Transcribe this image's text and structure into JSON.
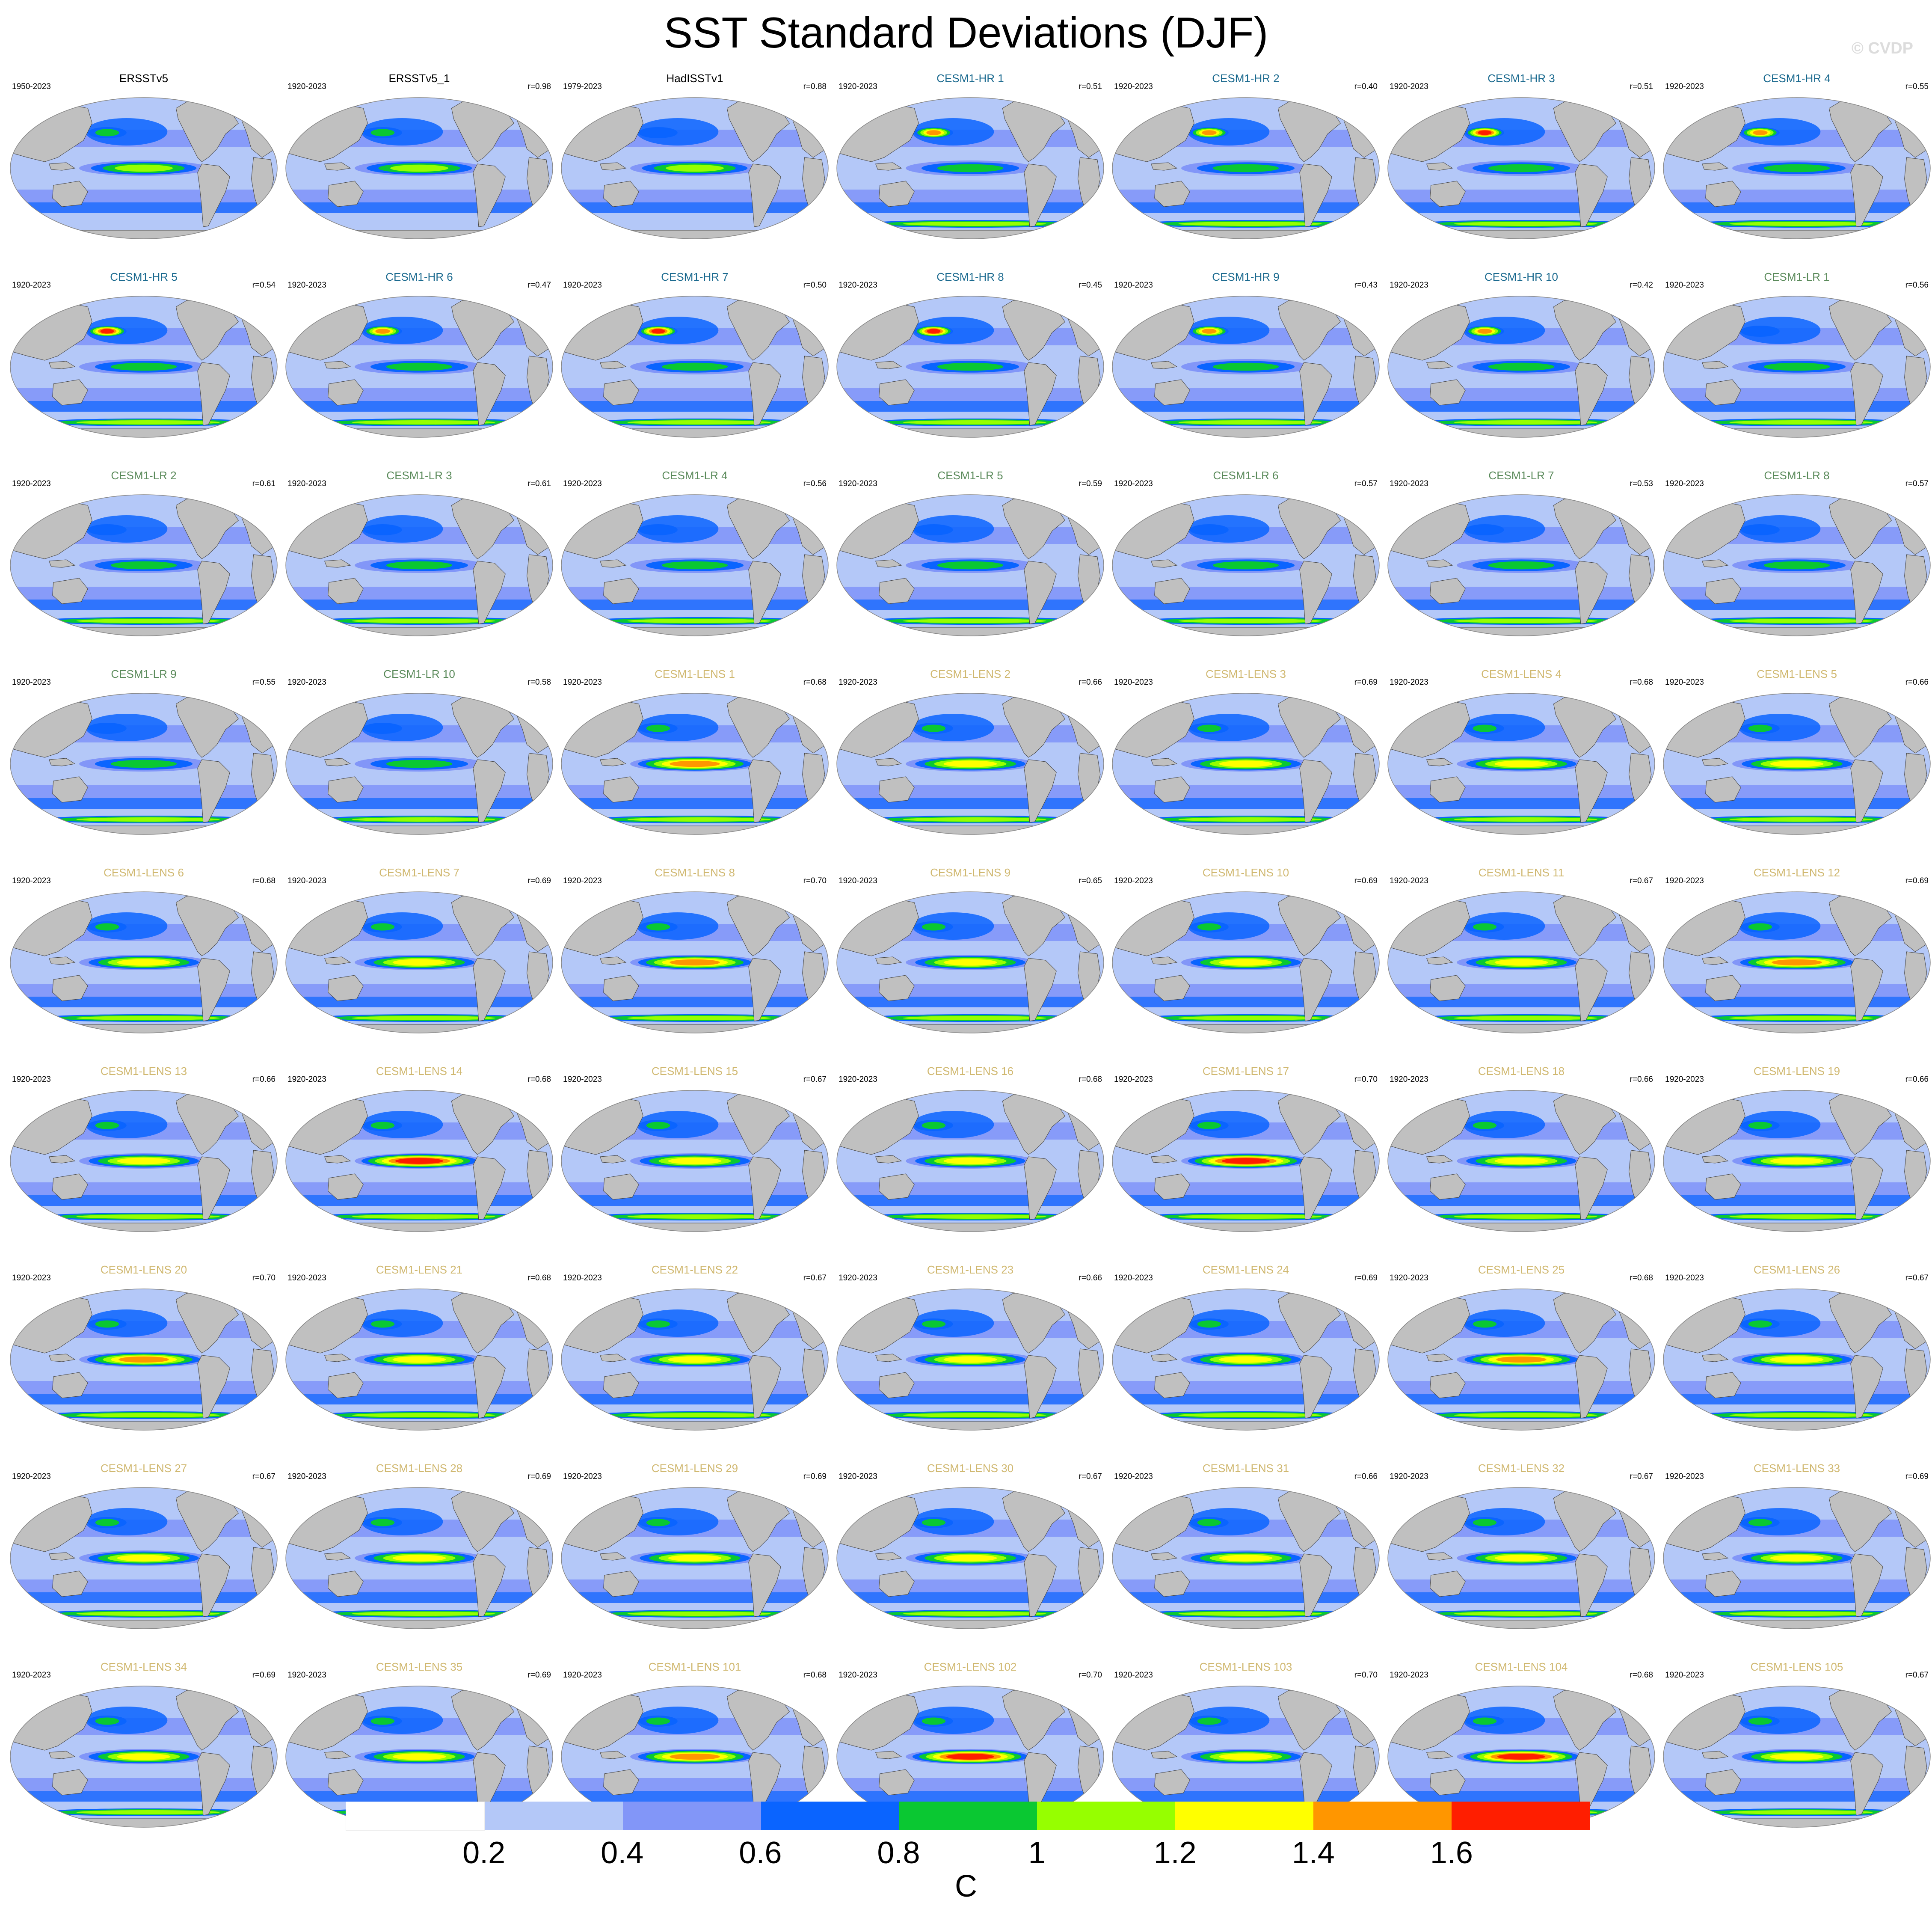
{
  "title": "SST Standard Deviations (DJF)",
  "watermark": "© CVDP",
  "panels": [
    {
      "name": "ERSSTv5",
      "years": "1950-2023",
      "r": "",
      "group": "obs",
      "enso": 1.0,
      "kuro": 0.8,
      "so": 0.5
    },
    {
      "name": "ERSSTv5_1",
      "years": "1920-2023",
      "r": "r=0.98",
      "group": "obs",
      "enso": 1.0,
      "kuro": 0.8,
      "so": 0.5
    },
    {
      "name": "HadISSTv1",
      "years": "1979-2023",
      "r": "r=0.88",
      "group": "obs",
      "enso": 1.0,
      "kuro": 0.6,
      "so": 0.3
    },
    {
      "name": "CESM1-HR 1",
      "years": "1920-2023",
      "r": "r=0.51",
      "group": "hr",
      "enso": 0.95,
      "kuro": 1.5,
      "so": 1.1
    },
    {
      "name": "CESM1-HR 2",
      "years": "1920-2023",
      "r": "r=0.40",
      "group": "hr",
      "enso": 0.9,
      "kuro": 1.4,
      "so": 1.0
    },
    {
      "name": "CESM1-HR 3",
      "years": "1920-2023",
      "r": "r=0.51",
      "group": "hr",
      "enso": 0.95,
      "kuro": 1.6,
      "so": 1.0
    },
    {
      "name": "CESM1-HR 4",
      "years": "1920-2023",
      "r": "r=0.55",
      "group": "hr",
      "enso": 0.95,
      "kuro": 1.5,
      "so": 1.0
    },
    {
      "name": "CESM1-HR 5",
      "years": "1920-2023",
      "r": "r=0.54",
      "group": "hr",
      "enso": 0.95,
      "kuro": 1.6,
      "so": 1.1
    },
    {
      "name": "CESM1-HR 6",
      "years": "1920-2023",
      "r": "r=0.47",
      "group": "hr",
      "enso": 0.9,
      "kuro": 1.5,
      "so": 1.0
    },
    {
      "name": "CESM1-HR 7",
      "years": "1920-2023",
      "r": "r=0.50",
      "group": "hr",
      "enso": 0.95,
      "kuro": 1.6,
      "so": 1.1
    },
    {
      "name": "CESM1-HR 8",
      "years": "1920-2023",
      "r": "r=0.45",
      "group": "hr",
      "enso": 0.9,
      "kuro": 1.6,
      "so": 1.1
    },
    {
      "name": "CESM1-HR 9",
      "years": "1920-2023",
      "r": "r=0.43",
      "group": "hr",
      "enso": 0.9,
      "kuro": 1.5,
      "so": 1.1
    },
    {
      "name": "CESM1-HR 10",
      "years": "1920-2023",
      "r": "r=0.42",
      "group": "hr",
      "enso": 0.9,
      "kuro": 1.5,
      "so": 1.0
    },
    {
      "name": "CESM1-LR 1",
      "years": "1920-2023",
      "r": "r=0.56",
      "group": "lr",
      "enso": 0.85,
      "kuro": 0.7,
      "so": 1.1
    },
    {
      "name": "CESM1-LR 2",
      "years": "1920-2023",
      "r": "r=0.61",
      "group": "lr",
      "enso": 0.9,
      "kuro": 0.7,
      "so": 1.1
    },
    {
      "name": "CESM1-LR 3",
      "years": "1920-2023",
      "r": "r=0.61",
      "group": "lr",
      "enso": 0.9,
      "kuro": 0.7,
      "so": 1.1
    },
    {
      "name": "CESM1-LR 4",
      "years": "1920-2023",
      "r": "r=0.56",
      "group": "lr",
      "enso": 0.85,
      "kuro": 0.7,
      "so": 1.1
    },
    {
      "name": "CESM1-LR 5",
      "years": "1920-2023",
      "r": "r=0.59",
      "group": "lr",
      "enso": 0.9,
      "kuro": 0.7,
      "so": 1.0
    },
    {
      "name": "CESM1-LR 6",
      "years": "1920-2023",
      "r": "r=0.57",
      "group": "lr",
      "enso": 0.85,
      "kuro": 0.7,
      "so": 1.1
    },
    {
      "name": "CESM1-LR 7",
      "years": "1920-2023",
      "r": "r=0.53",
      "group": "lr",
      "enso": 0.85,
      "kuro": 0.7,
      "so": 1.1
    },
    {
      "name": "CESM1-LR 8",
      "years": "1920-2023",
      "r": "r=0.57",
      "group": "lr",
      "enso": 0.85,
      "kuro": 0.7,
      "so": 1.1
    },
    {
      "name": "CESM1-LR 9",
      "years": "1920-2023",
      "r": "r=0.55",
      "group": "lr",
      "enso": 0.9,
      "kuro": 0.7,
      "so": 1.1
    },
    {
      "name": "CESM1-LR 10",
      "years": "1920-2023",
      "r": "r=0.58",
      "group": "lr",
      "enso": 0.9,
      "kuro": 0.7,
      "so": 1.1
    },
    {
      "name": "CESM1-LENS 1",
      "years": "1920-2023",
      "r": "r=0.68",
      "group": "lens",
      "enso": 1.45,
      "kuro": 0.9,
      "so": 1.1
    },
    {
      "name": "CESM1-LENS 2",
      "years": "1920-2023",
      "r": "r=0.66",
      "group": "lens",
      "enso": 1.25,
      "kuro": 0.9,
      "so": 1.0
    },
    {
      "name": "CESM1-LENS 3",
      "years": "1920-2023",
      "r": "r=0.69",
      "group": "lens",
      "enso": 1.3,
      "kuro": 0.9,
      "so": 1.0
    },
    {
      "name": "CESM1-LENS 4",
      "years": "1920-2023",
      "r": "r=0.68",
      "group": "lens",
      "enso": 1.35,
      "kuro": 0.9,
      "so": 1.1
    },
    {
      "name": "CESM1-LENS 5",
      "years": "1920-2023",
      "r": "r=0.66",
      "group": "lens",
      "enso": 1.25,
      "kuro": 0.9,
      "so": 1.0
    },
    {
      "name": "CESM1-LENS 6",
      "years": "1920-2023",
      "r": "r=0.68",
      "group": "lens",
      "enso": 1.3,
      "kuro": 0.9,
      "so": 1.1
    },
    {
      "name": "CESM1-LENS 7",
      "years": "1920-2023",
      "r": "r=0.69",
      "group": "lens",
      "enso": 1.3,
      "kuro": 0.9,
      "so": 1.1
    },
    {
      "name": "CESM1-LENS 8",
      "years": "1920-2023",
      "r": "r=0.70",
      "group": "lens",
      "enso": 1.45,
      "kuro": 0.9,
      "so": 1.1
    },
    {
      "name": "CESM1-LENS 9",
      "years": "1920-2023",
      "r": "r=0.65",
      "group": "lens",
      "enso": 1.3,
      "kuro": 0.9,
      "so": 1.1
    },
    {
      "name": "CESM1-LENS 10",
      "years": "1920-2023",
      "r": "r=0.69",
      "group": "lens",
      "enso": 1.35,
      "kuro": 0.9,
      "so": 1.1
    },
    {
      "name": "CESM1-LENS 11",
      "years": "1920-2023",
      "r": "r=0.67",
      "group": "lens",
      "enso": 1.35,
      "kuro": 0.9,
      "so": 1.1
    },
    {
      "name": "CESM1-LENS 12",
      "years": "1920-2023",
      "r": "r=0.69",
      "group": "lens",
      "enso": 1.45,
      "kuro": 0.9,
      "so": 1.1
    },
    {
      "name": "CESM1-LENS 13",
      "years": "1920-2023",
      "r": "r=0.66",
      "group": "lens",
      "enso": 1.3,
      "kuro": 0.9,
      "so": 1.1
    },
    {
      "name": "CESM1-LENS 14",
      "years": "1920-2023",
      "r": "r=0.68",
      "group": "lens",
      "enso": 1.65,
      "kuro": 0.9,
      "so": 1.1
    },
    {
      "name": "CESM1-LENS 15",
      "years": "1920-2023",
      "r": "r=0.67",
      "group": "lens",
      "enso": 1.3,
      "kuro": 0.9,
      "so": 1.0
    },
    {
      "name": "CESM1-LENS 16",
      "years": "1920-2023",
      "r": "r=0.68",
      "group": "lens",
      "enso": 1.3,
      "kuro": 0.9,
      "so": 1.1
    },
    {
      "name": "CESM1-LENS 17",
      "years": "1920-2023",
      "r": "r=0.70",
      "group": "lens",
      "enso": 1.6,
      "kuro": 0.9,
      "so": 1.1
    },
    {
      "name": "CESM1-LENS 18",
      "years": "1920-2023",
      "r": "r=0.66",
      "group": "lens",
      "enso": 1.3,
      "kuro": 0.9,
      "so": 1.1
    },
    {
      "name": "CESM1-LENS 19",
      "years": "1920-2023",
      "r": "r=0.66",
      "group": "lens",
      "enso": 1.25,
      "kuro": 0.9,
      "so": 1.1
    },
    {
      "name": "CESM1-LENS 20",
      "years": "1920-2023",
      "r": "r=0.70",
      "group": "lens",
      "enso": 1.45,
      "kuro": 0.9,
      "so": 1.1
    },
    {
      "name": "CESM1-LENS 21",
      "years": "1920-2023",
      "r": "r=0.68",
      "group": "lens",
      "enso": 1.3,
      "kuro": 0.9,
      "so": 1.1
    },
    {
      "name": "CESM1-LENS 22",
      "years": "1920-2023",
      "r": "r=0.67",
      "group": "lens",
      "enso": 1.3,
      "kuro": 0.9,
      "so": 1.0
    },
    {
      "name": "CESM1-LENS 23",
      "years": "1920-2023",
      "r": "r=0.66",
      "group": "lens",
      "enso": 1.3,
      "kuro": 0.9,
      "so": 1.0
    },
    {
      "name": "CESM1-LENS 24",
      "years": "1920-2023",
      "r": "r=0.69",
      "group": "lens",
      "enso": 1.35,
      "kuro": 0.9,
      "so": 1.1
    },
    {
      "name": "CESM1-LENS 25",
      "years": "1920-2023",
      "r": "r=0.68",
      "group": "lens",
      "enso": 1.45,
      "kuro": 0.9,
      "so": 1.1
    },
    {
      "name": "CESM1-LENS 26",
      "years": "1920-2023",
      "r": "r=0.67",
      "group": "lens",
      "enso": 1.3,
      "kuro": 0.9,
      "so": 1.1
    },
    {
      "name": "CESM1-LENS 27",
      "years": "1920-2023",
      "r": "r=0.67",
      "group": "lens",
      "enso": 1.3,
      "kuro": 0.9,
      "so": 1.1
    },
    {
      "name": "CESM1-LENS 28",
      "years": "1920-2023",
      "r": "r=0.69",
      "group": "lens",
      "enso": 1.3,
      "kuro": 0.9,
      "so": 1.1
    },
    {
      "name": "CESM1-LENS 29",
      "years": "1920-2023",
      "r": "r=0.69",
      "group": "lens",
      "enso": 1.3,
      "kuro": 0.9,
      "so": 1.1
    },
    {
      "name": "CESM1-LENS 30",
      "years": "1920-2023",
      "r": "r=0.67",
      "group": "lens",
      "enso": 1.3,
      "kuro": 0.9,
      "so": 1.1
    },
    {
      "name": "CESM1-LENS 31",
      "years": "1920-2023",
      "r": "r=0.66",
      "group": "lens",
      "enso": 1.3,
      "kuro": 0.9,
      "so": 1.1
    },
    {
      "name": "CESM1-LENS 32",
      "years": "1920-2023",
      "r": "r=0.67",
      "group": "lens",
      "enso": 1.25,
      "kuro": 0.9,
      "so": 1.1
    },
    {
      "name": "CESM1-LENS 33",
      "years": "1920-2023",
      "r": "r=0.69",
      "group": "lens",
      "enso": 1.3,
      "kuro": 0.9,
      "so": 1.1
    },
    {
      "name": "CESM1-LENS 34",
      "years": "1920-2023",
      "r": "r=0.69",
      "group": "lens",
      "enso": 1.35,
      "kuro": 0.9,
      "so": 1.1
    },
    {
      "name": "CESM1-LENS 35",
      "years": "1920-2023",
      "r": "r=0.69",
      "group": "lens",
      "enso": 1.3,
      "kuro": 0.9,
      "so": 1.1
    },
    {
      "name": "CESM1-LENS 101",
      "years": "1920-2023",
      "r": "r=0.68",
      "group": "lens",
      "enso": 1.45,
      "kuro": 0.9,
      "so": 1.1
    },
    {
      "name": "CESM1-LENS 102",
      "years": "1920-2023",
      "r": "r=0.70",
      "group": "lens",
      "enso": 1.6,
      "kuro": 0.9,
      "so": 1.1
    },
    {
      "name": "CESM1-LENS 103",
      "years": "1920-2023",
      "r": "r=0.70",
      "group": "lens",
      "enso": 1.35,
      "kuro": 0.9,
      "so": 1.1
    },
    {
      "name": "CESM1-LENS 104",
      "years": "1920-2023",
      "r": "r=0.68",
      "group": "lens",
      "enso": 1.6,
      "kuro": 0.9,
      "so": 1.1
    },
    {
      "name": "CESM1-LENS 105",
      "years": "1920-2023",
      "r": "r=0.67",
      "group": "lens",
      "enso": 1.3,
      "kuro": 0.9,
      "so": 1.1
    }
  ],
  "group_colors": {
    "obs": "#000000",
    "hr": "#1b6a8f",
    "lr": "#5a8a5a",
    "lens": "#d0b870"
  },
  "colorbar": {
    "colors": [
      "#ffffff",
      "#b4c8f8",
      "#8296f8",
      "#0a64ff",
      "#0ac832",
      "#96ff00",
      "#ffff00",
      "#ff9600",
      "#ff1e00"
    ],
    "labels": [
      "0.2",
      "0.4",
      "0.6",
      "0.8",
      "1",
      "1.2",
      "1.4",
      "1.6"
    ],
    "unit": "C"
  },
  "map_colors": {
    "land": "#c0c0c0",
    "coast": "#444444"
  }
}
